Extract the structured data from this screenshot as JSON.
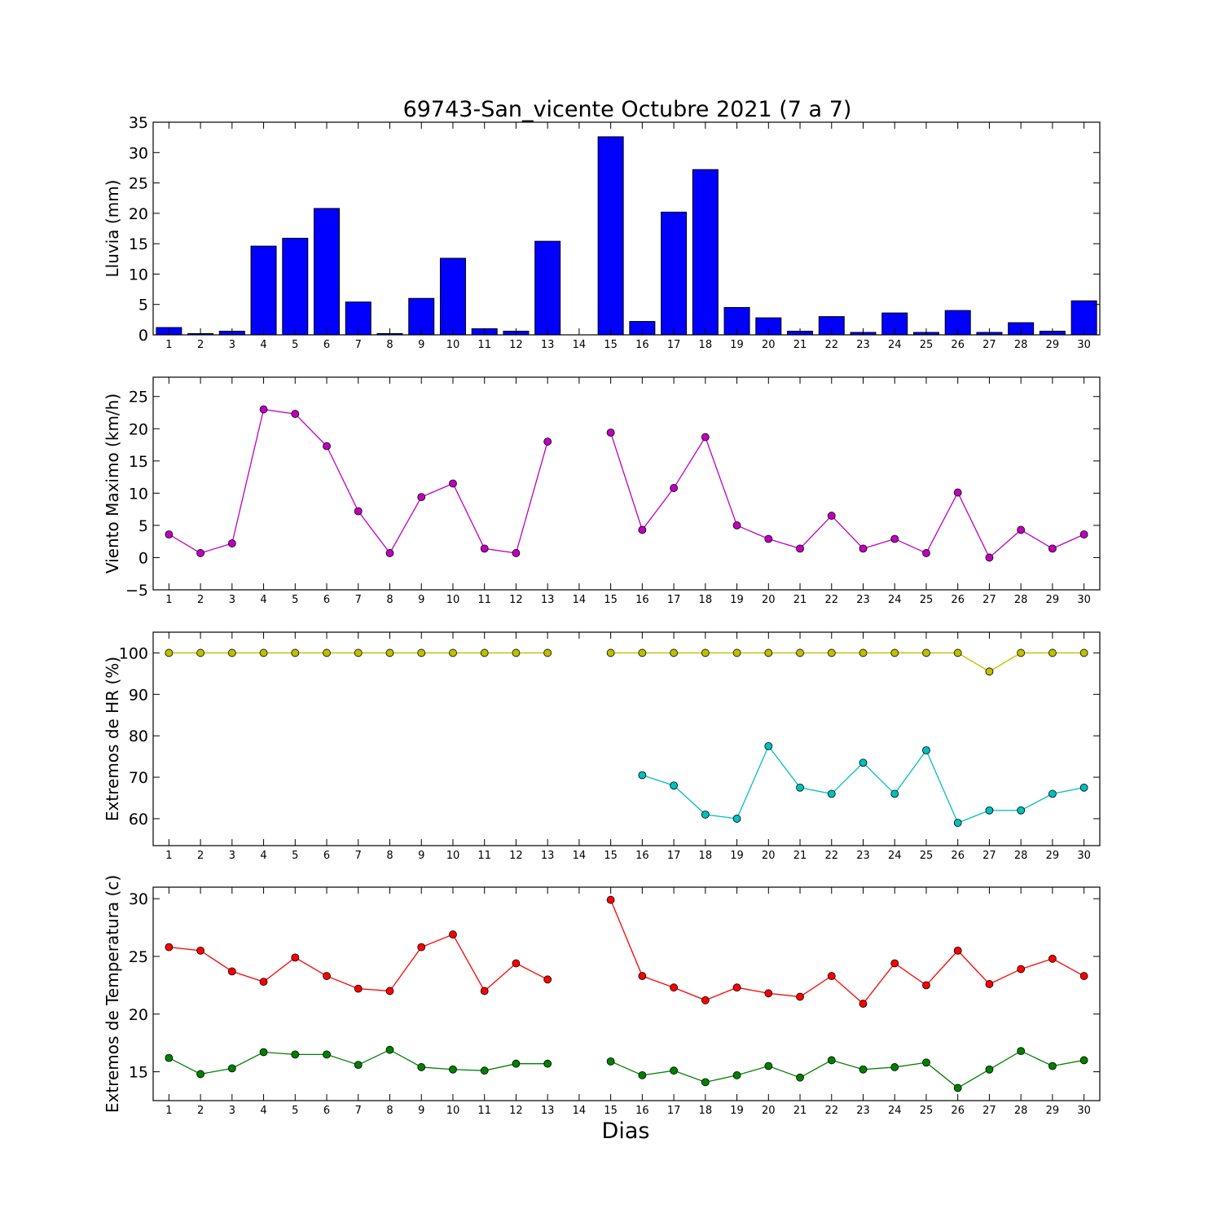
{
  "figure": {
    "title": "69743-San_vicente Octubre 2021  (7 a 7)",
    "xlabel": "Dias"
  },
  "chart_data": [
    {
      "type": "bar",
      "ylabel": "Lluvia (mm)",
      "ylim": [
        0,
        35
      ],
      "yticks": [
        0,
        5,
        10,
        15,
        20,
        25,
        30,
        35
      ],
      "categories": [
        1,
        2,
        3,
        4,
        5,
        6,
        7,
        8,
        9,
        10,
        11,
        12,
        13,
        14,
        15,
        16,
        17,
        18,
        19,
        20,
        21,
        22,
        23,
        24,
        25,
        26,
        27,
        28,
        29,
        30
      ],
      "series": [
        {
          "color": "#0000ff",
          "values": [
            1.2,
            0.2,
            0.6,
            14.6,
            15.9,
            20.8,
            5.4,
            0.2,
            6.0,
            12.6,
            1.0,
            0.6,
            15.4,
            0.0,
            32.6,
            2.2,
            20.2,
            27.2,
            4.5,
            2.8,
            0.6,
            3.0,
            0.4,
            3.6,
            0.4,
            4.0,
            0.4,
            2.0,
            0.6,
            5.6
          ]
        }
      ]
    },
    {
      "type": "line",
      "ylabel": "Viento Maximo (km/h)",
      "ylim": [
        -5,
        28
      ],
      "yticks": [
        -5,
        0,
        5,
        10,
        15,
        20,
        25
      ],
      "categories": [
        1,
        2,
        3,
        4,
        5,
        6,
        7,
        8,
        9,
        10,
        11,
        12,
        13,
        14,
        15,
        16,
        17,
        18,
        19,
        20,
        21,
        22,
        23,
        24,
        25,
        26,
        27,
        28,
        29,
        30
      ],
      "series": [
        {
          "color": "#bf00bf",
          "values": [
            3.6,
            0.7,
            2.2,
            23.0,
            22.3,
            17.3,
            7.2,
            0.7,
            9.4,
            11.5,
            1.4,
            0.7,
            18.0,
            null,
            19.4,
            4.3,
            10.8,
            18.7,
            5.0,
            2.9,
            1.4,
            6.5,
            1.4,
            2.9,
            0.7,
            10.1,
            0.0,
            4.3,
            1.4,
            3.6
          ]
        }
      ]
    },
    {
      "type": "line",
      "ylabel": "Extremos de HR (%)",
      "ylim": [
        53.5,
        105
      ],
      "yticks": [
        60,
        70,
        80,
        90,
        100
      ],
      "categories": [
        1,
        2,
        3,
        4,
        5,
        6,
        7,
        8,
        9,
        10,
        11,
        12,
        13,
        14,
        15,
        16,
        17,
        18,
        19,
        20,
        21,
        22,
        23,
        24,
        25,
        26,
        27,
        28,
        29,
        30
      ],
      "series": [
        {
          "color": "#bfbf00",
          "values": [
            100,
            100,
            100,
            100,
            100,
            100,
            100,
            100,
            100,
            100,
            100,
            100,
            100,
            null,
            100,
            100,
            100,
            100,
            100,
            100,
            100,
            100,
            100,
            100,
            100,
            100,
            95.5,
            100,
            100,
            100
          ]
        },
        {
          "color": "#00bfbf",
          "values": [
            null,
            null,
            null,
            null,
            null,
            null,
            null,
            null,
            null,
            null,
            null,
            null,
            null,
            null,
            null,
            70.5,
            68.0,
            61.0,
            60.0,
            77.5,
            67.5,
            66.0,
            73.5,
            66.0,
            76.5,
            59.0,
            62.0,
            62.0,
            66.0,
            67.5
          ]
        }
      ]
    },
    {
      "type": "line",
      "ylabel": "Extremos de Temperatura (c)",
      "ylim": [
        12.5,
        31
      ],
      "yticks": [
        15,
        20,
        25,
        30
      ],
      "categories": [
        1,
        2,
        3,
        4,
        5,
        6,
        7,
        8,
        9,
        10,
        11,
        12,
        13,
        14,
        15,
        16,
        17,
        18,
        19,
        20,
        21,
        22,
        23,
        24,
        25,
        26,
        27,
        28,
        29,
        30
      ],
      "series": [
        {
          "color": "#ff0000",
          "values": [
            25.8,
            25.5,
            23.7,
            22.8,
            24.9,
            23.3,
            22.2,
            22.0,
            25.8,
            26.9,
            22.0,
            24.4,
            23.0,
            null,
            29.9,
            23.3,
            22.3,
            21.2,
            22.3,
            21.8,
            21.5,
            23.3,
            20.9,
            24.4,
            22.5,
            25.5,
            22.6,
            23.9,
            24.8,
            23.3
          ]
        },
        {
          "color": "#008000",
          "values": [
            16.2,
            14.8,
            15.3,
            16.7,
            16.5,
            16.5,
            15.6,
            16.9,
            15.4,
            15.2,
            15.1,
            15.7,
            15.7,
            null,
            15.9,
            14.7,
            15.1,
            14.1,
            14.7,
            15.5,
            14.5,
            16.0,
            15.2,
            15.4,
            15.8,
            13.6,
            15.2,
            16.8,
            15.5,
            16.0
          ]
        }
      ]
    }
  ]
}
